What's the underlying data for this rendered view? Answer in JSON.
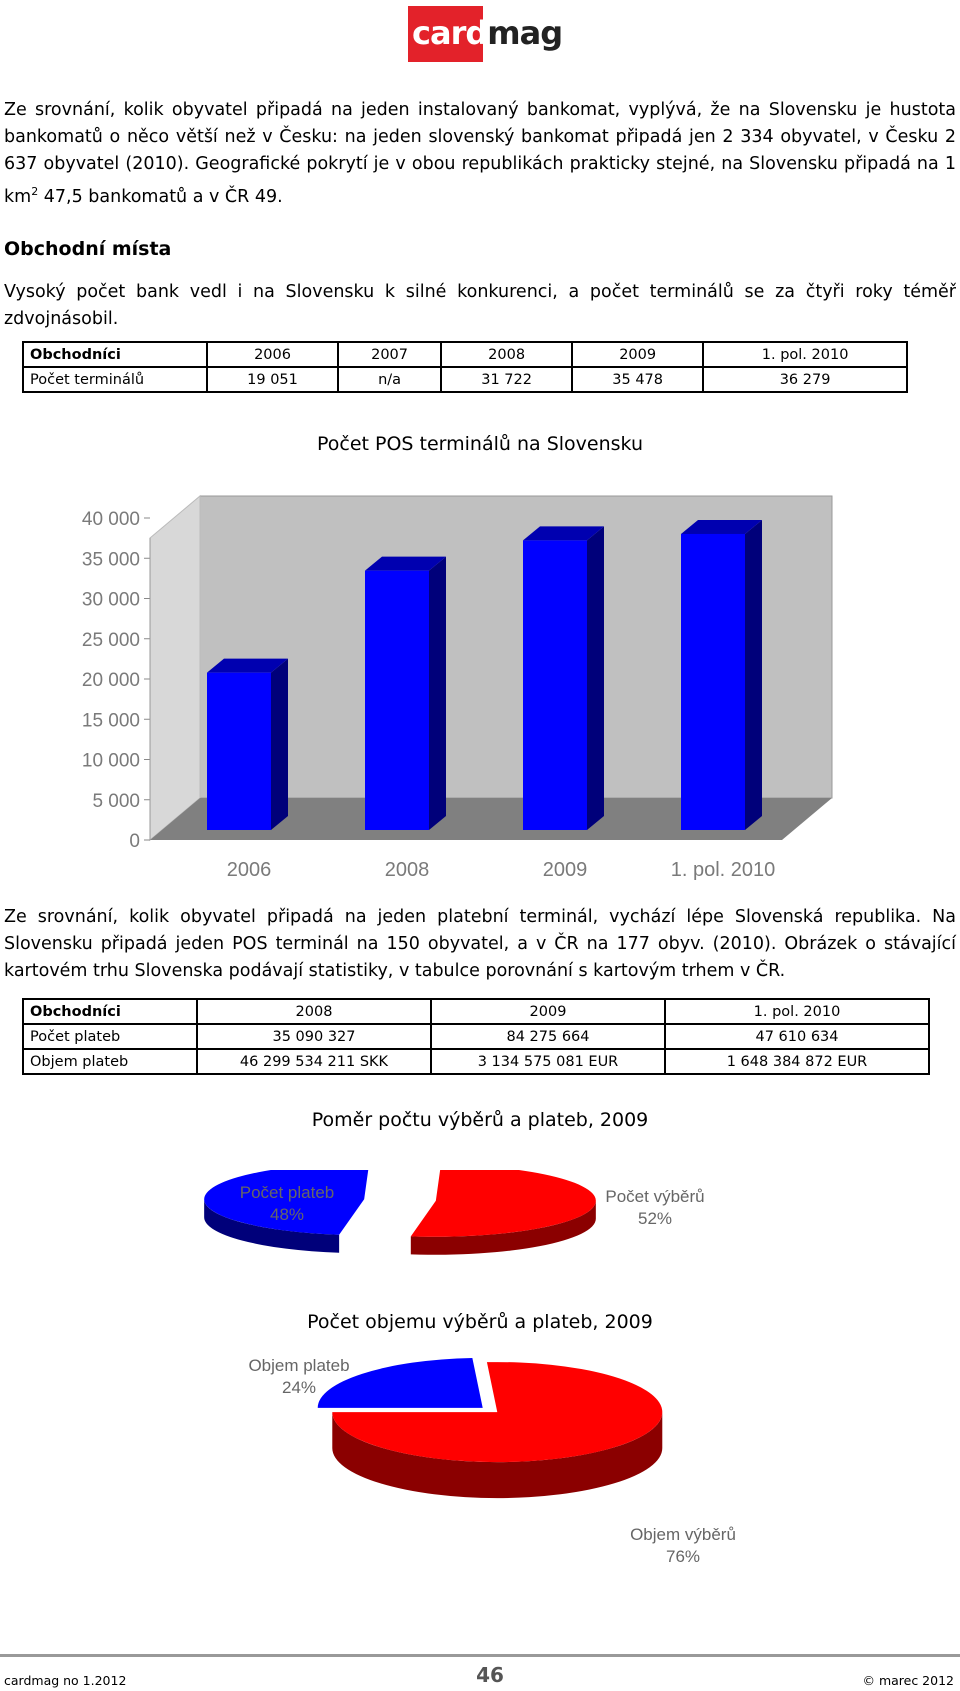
{
  "logo": {
    "part1": "card",
    "part2": "mag"
  },
  "intro": {
    "line1": "Ze srovnání, kolik obyvatel připadá na jeden instalovaný bankomat, vyplývá, že na Slovensku je hustota bankomatů o něco větší než v Česku: na jeden slovenský bankomat připadá jen 2 334 obyvatel, v Česku 2 637 obyvatel (2010). Geografické pokrytí je v obou republikách prakticky stejné, na Slovensku připadá na 1 km",
    "sup": "2",
    "line2": " 47,5 bankomatů a v ČR 49."
  },
  "section_heading": "Obchodní místa",
  "section_text": "Vysoký počet bank vedl i na Slovensku k silné konkurenci, a počet terminálů se za čtyři roky téměř zdvojnásobil.",
  "table1": {
    "header": [
      "Obchodníci",
      "2006",
      "2007",
      "2008",
      "2009",
      "1. pol. 2010"
    ],
    "row": [
      "Počet terminálů",
      "19 051",
      "n/a",
      "31 722",
      "35 478",
      "36 279"
    ]
  },
  "para2": "Ze srovnání, kolik obyvatel připadá na jeden platební terminál, vychází lépe Slovenská republika. Na Slovensku připadá jeden POS terminál na 150 obyvatel, a v ČR na 177 obyv. (2010). Obrázek o stávající kartovém trhu Slovenska podávají statistiky, v tabulce porovnání s kartovým trhem v ČR.",
  "table2": {
    "header": [
      "Obchodníci",
      "2008",
      "2009",
      "1. pol. 2010"
    ],
    "rows": [
      [
        "Počet plateb",
        "35 090 327",
        "84 275 664",
        "47 610 634"
      ],
      [
        "Objem plateb",
        "46 299 534 211 SKK",
        "3 134 575 081 EUR",
        "1 648 384 872 EUR"
      ]
    ]
  },
  "chart_data": [
    {
      "type": "bar",
      "title": "Počet POS terminálů na Slovensku",
      "categories": [
        "2006",
        "2008",
        "2009",
        "1. pol. 2010"
      ],
      "values": [
        19051,
        31722,
        35478,
        36279
      ],
      "ylim": [
        0,
        40000
      ],
      "yticks": [
        "0",
        "5 000",
        "10 000",
        "15 000",
        "20 000",
        "25 000",
        "30 000",
        "35 000",
        "40 000"
      ],
      "grid": false,
      "colors": {
        "bar": "#0000ff",
        "bar_side": "#00007a",
        "bar_top": "#0000b0",
        "wall": "#c0c0c0",
        "floor": "#808080"
      }
    },
    {
      "type": "pie",
      "title": "Poměr počtu výběrů a plateb, 2009",
      "labels": [
        "Počet plateb",
        "Počet výběrů"
      ],
      "values": [
        48,
        52
      ],
      "value_labels": [
        "48%",
        "52%"
      ],
      "colors": [
        "#0000ff",
        "#ff0000"
      ]
    },
    {
      "type": "pie",
      "title": "Počet objemu výběrů a plateb, 2009",
      "labels": [
        "Objem plateb",
        "Objem výběrů"
      ],
      "values": [
        24,
        76
      ],
      "value_labels": [
        "24%",
        "76%"
      ],
      "colors": [
        "#0000ff",
        "#ff0000"
      ]
    }
  ],
  "footer": {
    "left": "cardmag no 1.2012",
    "page": "46",
    "right": "© marec 2012"
  }
}
